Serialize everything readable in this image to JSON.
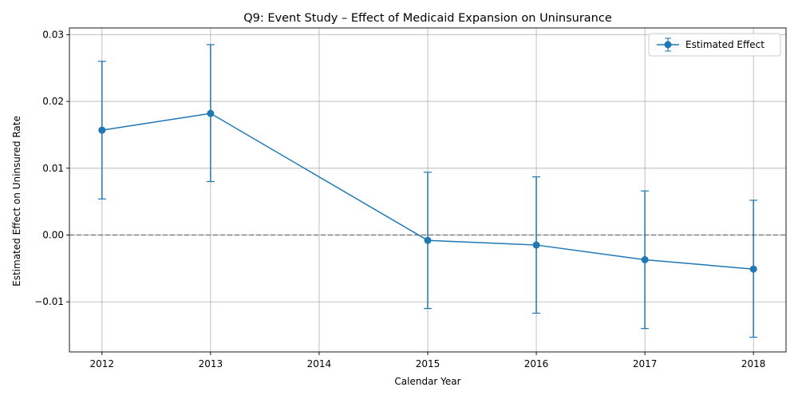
{
  "chart_data": {
    "type": "line",
    "title": "Q9: Event Study – Effect of Medicaid Expansion on Uninsurance",
    "xlabel": "Calendar Year",
    "ylabel": "Estimated Effect on Uninsured Rate",
    "xlim": [
      2011.7,
      2018.3
    ],
    "ylim": [
      -0.0175,
      0.031
    ],
    "xticks": [
      2012,
      2013,
      2014,
      2015,
      2016,
      2017,
      2018
    ],
    "xtick_labels": [
      "2012",
      "2013",
      "2014",
      "2015",
      "2016",
      "2017",
      "2018"
    ],
    "yticks": [
      -0.01,
      0.0,
      0.01,
      0.02,
      0.03
    ],
    "ytick_labels": [
      "−0.01",
      "0.00",
      "0.01",
      "0.02",
      "0.03"
    ],
    "grid": true,
    "reference_line": {
      "y": 0.0,
      "style": "dashed",
      "color": "#808080"
    },
    "legend": {
      "placement": "top-right"
    },
    "series": [
      {
        "name": "Estimated Effect",
        "color": "#1f77b4",
        "marker": "circle",
        "x": [
          2012,
          2013,
          2015,
          2016,
          2017,
          2018
        ],
        "y": [
          0.0157,
          0.0182,
          -0.0008,
          -0.0015,
          -0.0037,
          -0.0051
        ],
        "ci_lower": [
          0.0054,
          0.008,
          -0.011,
          -0.0117,
          -0.014,
          -0.0153
        ],
        "ci_upper": [
          0.026,
          0.0285,
          0.0094,
          0.0087,
          0.0066,
          0.0052
        ]
      }
    ]
  }
}
